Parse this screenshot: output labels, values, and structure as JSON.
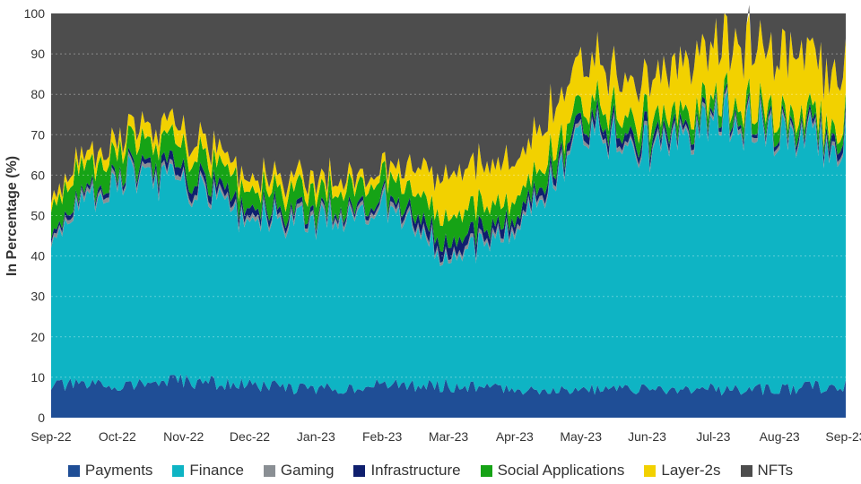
{
  "chart_data": {
    "type": "area",
    "stacked": true,
    "normalized_percent": true,
    "title": "",
    "xlabel": "",
    "ylabel": "In Percentage (%)",
    "ylim": [
      0,
      100
    ],
    "yticks": [
      0,
      10,
      20,
      30,
      40,
      50,
      60,
      70,
      80,
      90,
      100
    ],
    "grid": "horizontal-dotted",
    "x": [
      "Sep-22",
      "Oct-22",
      "Nov-22",
      "Dec-22",
      "Jan-23",
      "Feb-23",
      "Mar-23",
      "Apr-23",
      "May-23",
      "Jun-23",
      "Jul-23",
      "Aug-23",
      "Sep-23"
    ],
    "series": [
      {
        "name": "Payments",
        "color": "#1f4e96",
        "values": [
          8,
          8,
          9,
          8,
          7,
          8,
          8,
          7,
          7,
          7,
          7,
          7,
          8
        ]
      },
      {
        "name": "Finance",
        "color": "#0eb4c4",
        "values": [
          36,
          52,
          49,
          41,
          42,
          45,
          33,
          38,
          63,
          59,
          67,
          64,
          60
        ]
      },
      {
        "name": "Gaming",
        "color": "#8a8f94",
        "values": [
          1,
          1,
          1,
          1,
          1,
          1,
          1,
          1,
          1,
          1,
          1,
          1,
          1
        ]
      },
      {
        "name": "Infrastructure",
        "color": "#0f1f6e",
        "values": [
          1,
          1,
          2,
          2,
          1,
          1,
          3,
          2,
          2,
          2,
          1,
          1,
          2
        ]
      },
      {
        "name": "Social Applications",
        "color": "#16a316",
        "values": [
          7,
          6,
          6,
          5,
          5,
          5,
          6,
          5,
          4,
          4,
          3,
          3,
          3
        ]
      },
      {
        "name": "Layer-2s",
        "color": "#f2d100",
        "values": [
          2,
          3,
          4,
          3,
          3,
          2,
          10,
          10,
          11,
          9,
          14,
          16,
          14
        ]
      },
      {
        "name": "NFTs",
        "color": "#4d4d4d",
        "values": [
          45,
          29,
          29,
          40,
          41,
          38,
          39,
          37,
          12,
          18,
          7,
          8,
          12
        ]
      }
    ],
    "legend_position": "bottom"
  }
}
